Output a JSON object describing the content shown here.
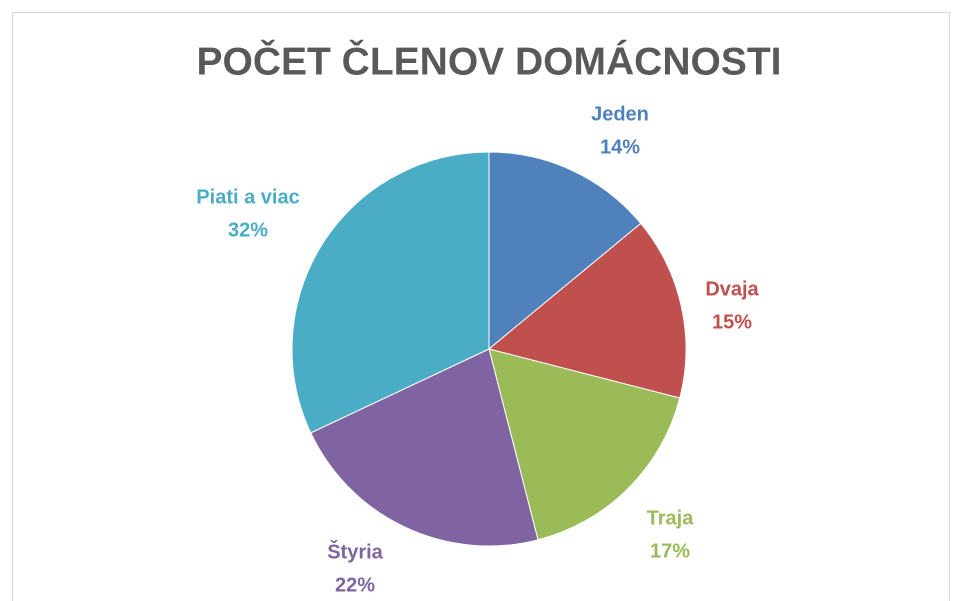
{
  "chart_data": {
    "type": "pie",
    "title": "POČET ČLENOV DOMÁCNOSTI",
    "categories": [
      "Jeden",
      "Dvaja",
      "Traja",
      "Štyria",
      "Piati a viac"
    ],
    "values": [
      14,
      15,
      17,
      22,
      32
    ],
    "value_labels": [
      "14%",
      "15%",
      "17%",
      "22%",
      "32%"
    ],
    "colors": [
      "#4f81bd",
      "#c0504d",
      "#9bbb59",
      "#8064a2",
      "#4bacc6"
    ]
  }
}
